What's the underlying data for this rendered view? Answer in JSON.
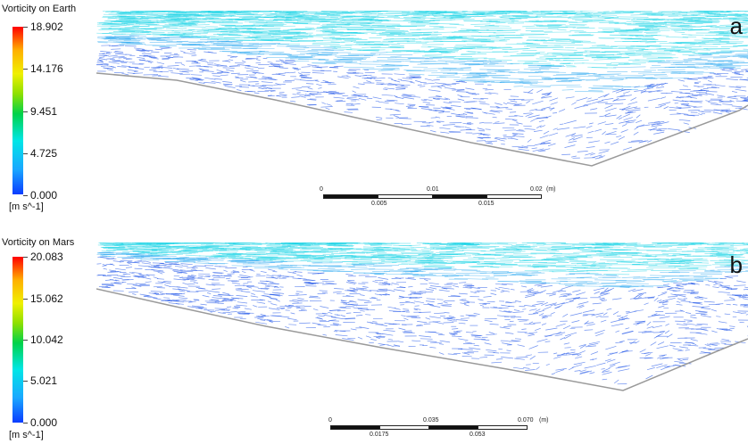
{
  "panels": [
    {
      "legend_title": "Vorticity on Earth",
      "ticks": [
        "18.902",
        "14.176",
        "9.451",
        "4.725",
        "0.000"
      ],
      "unit": "[m s^-1]",
      "letter": "a",
      "scale_top": [
        "0",
        "0.01",
        "0.02",
        "(m)"
      ],
      "scale_bottom": [
        "0.005",
        "0.015"
      ]
    },
    {
      "legend_title": "Vorticity on Mars",
      "ticks": [
        "20.083",
        "15.062",
        "10.042",
        "5.021",
        "0.000"
      ],
      "unit": "[m s^-1]",
      "letter": "b",
      "scale_top": [
        "0",
        "0.035",
        "0.070",
        "(m)"
      ],
      "scale_bottom": [
        "0.0175",
        "0.053"
      ]
    }
  ],
  "colors": {
    "vector_cyan": "#17d3e6",
    "vector_light_blue": "#2aa8f0",
    "vector_blue": "#1f55e8",
    "wall": "#9a9a9a"
  }
}
